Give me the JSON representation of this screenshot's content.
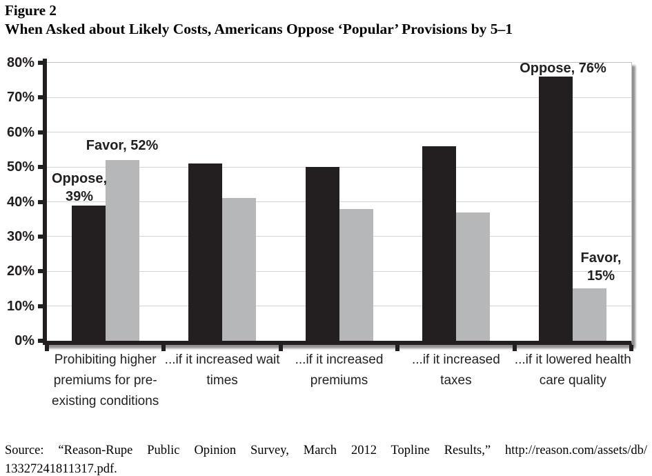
{
  "figure": {
    "label": "Figure 2",
    "title": "When Asked about Likely Costs, Americans Oppose ‘Popular’ Provisions by 5–1"
  },
  "chart_data": {
    "type": "bar",
    "categories": [
      "Prohibiting higher premiums for pre-existing conditions",
      "...if it increased wait times",
      "...if it increased premiums",
      "...if it increased taxes",
      "...if it lowered health care quality"
    ],
    "series": [
      {
        "name": "Oppose",
        "color": "#231f20",
        "values": [
          39,
          51,
          50,
          56,
          76
        ]
      },
      {
        "name": "Favor",
        "color": "#b5b7b9",
        "values": [
          52,
          41,
          38,
          37,
          15
        ]
      }
    ],
    "ylim": [
      0,
      80
    ],
    "ytick_step": 10,
    "ytick_labels": [
      "0%",
      "10%",
      "20%",
      "30%",
      "40%",
      "50%",
      "60%",
      "70%",
      "80%"
    ],
    "grid": true,
    "legend_position": "none",
    "annotations": [
      {
        "text": "Oppose, 39%",
        "series": "Oppose",
        "category_index": 0
      },
      {
        "text": "Favor, 52%",
        "series": "Favor",
        "category_index": 0
      },
      {
        "text": "Oppose, 76%",
        "series": "Oppose",
        "category_index": 4
      },
      {
        "text": "Favor, 15%",
        "series": "Favor",
        "category_index": 4
      }
    ],
    "gridline_color": "#d4d4d4",
    "axis_color": "#231f20"
  },
  "source": {
    "line1": "Source: “Reason-Rupe Public Opinion Survey, March 2012 Topline Results,” http://reason.com/assets/db/",
    "line2": "13327241811317.pdf."
  }
}
